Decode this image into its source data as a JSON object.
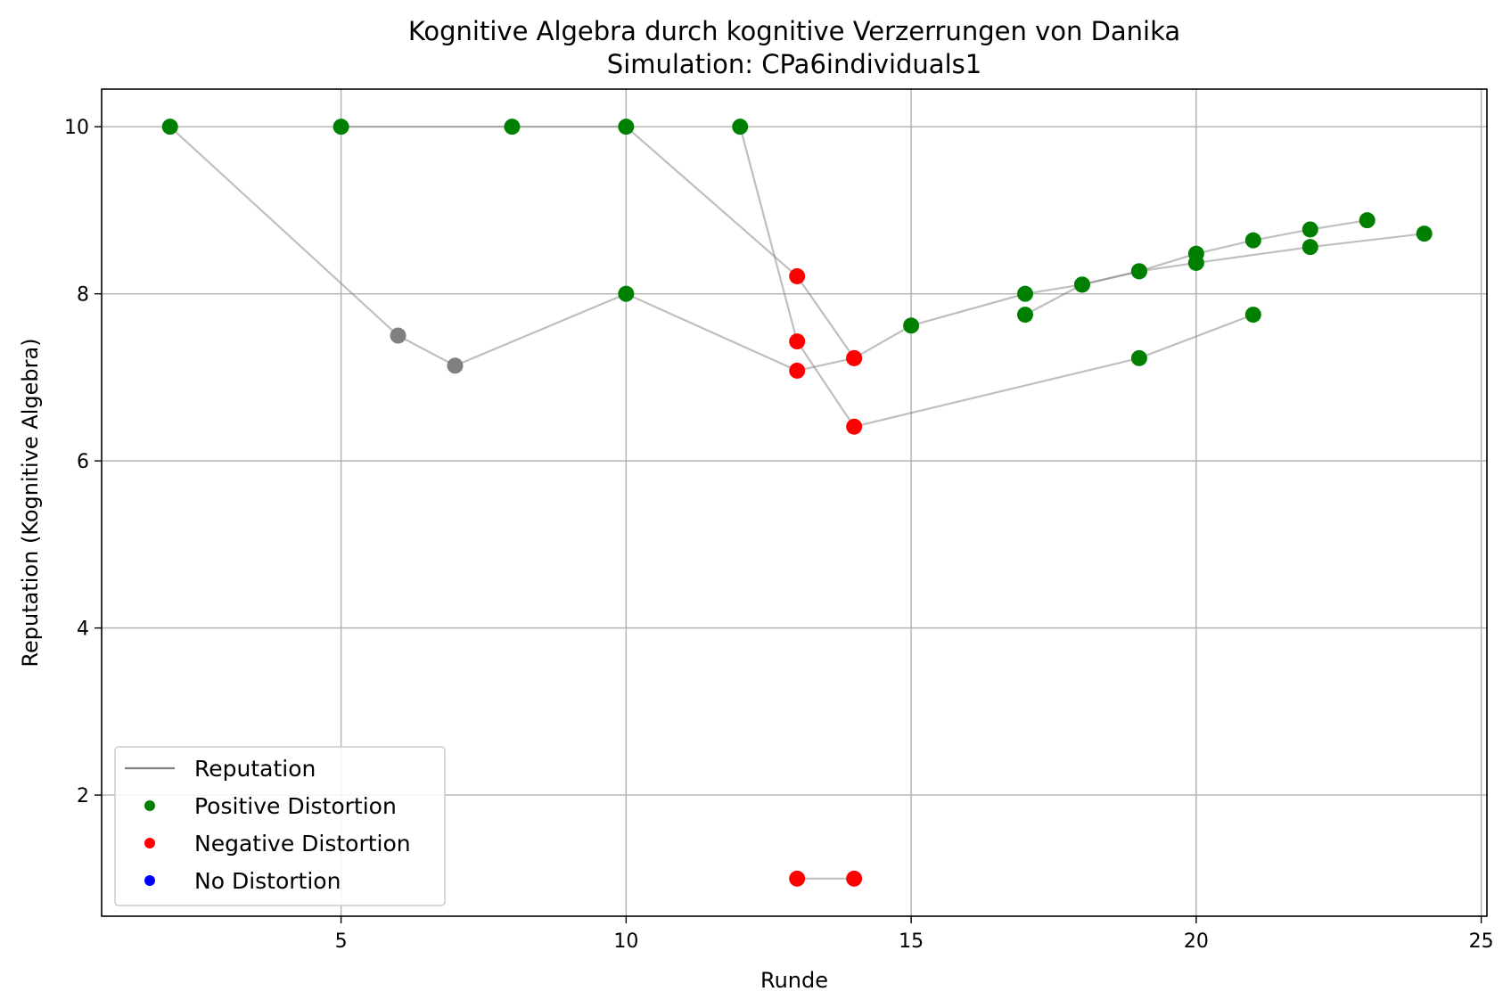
{
  "chart_data": {
    "type": "scatter",
    "title": "Kognitive Algebra durch kognitive Verzerrungen von Danika",
    "subtitle": "Simulation: CPa6individuals1",
    "xlabel": "Runde",
    "ylabel": "Reputation (Kognitive Algebra)",
    "xlim": [
      0.8,
      25.1
    ],
    "ylim": [
      0.55,
      10.45
    ],
    "xticks": [
      5,
      10,
      15,
      20,
      25
    ],
    "yticks": [
      2,
      4,
      6,
      8,
      10
    ],
    "grid": true,
    "legend_position": "lower-left",
    "legend": [
      {
        "label": "Reputation",
        "kind": "line",
        "color": "#808080"
      },
      {
        "label": "Positive Distortion",
        "kind": "marker",
        "color": "#008000"
      },
      {
        "label": "Negative Distortion",
        "kind": "marker",
        "color": "#ff0000"
      },
      {
        "label": "No Distortion",
        "kind": "marker",
        "color": "#0000ff"
      }
    ],
    "colors": {
      "positive": "#008000",
      "negative": "#ff0000",
      "neutral": "#808080",
      "line": "#808080",
      "grid": "#b0b0b0"
    },
    "trajectories": [
      [
        {
          "x": 2,
          "y": 10.0,
          "d": "positive"
        },
        {
          "x": 6,
          "y": 7.5,
          "d": "neutral"
        },
        {
          "x": 7,
          "y": 7.14,
          "d": "neutral"
        },
        {
          "x": 10,
          "y": 8.0,
          "d": "positive"
        },
        {
          "x": 13,
          "y": 7.08,
          "d": "negative"
        },
        {
          "x": 14,
          "y": 7.23,
          "d": "negative"
        },
        {
          "x": 15,
          "y": 7.62,
          "d": "positive"
        },
        {
          "x": 17,
          "y": 8.0,
          "d": "positive"
        },
        {
          "x": 18,
          "y": 8.11,
          "d": "positive"
        },
        {
          "x": 19,
          "y": 8.27,
          "d": "positive"
        },
        {
          "x": 20,
          "y": 8.48,
          "d": "positive"
        },
        {
          "x": 21,
          "y": 8.64,
          "d": "positive"
        },
        {
          "x": 22,
          "y": 8.77,
          "d": "positive"
        },
        {
          "x": 23,
          "y": 8.88,
          "d": "positive"
        }
      ],
      [
        {
          "x": 5,
          "y": 10.0,
          "d": "positive"
        },
        {
          "x": 8,
          "y": 10.0,
          "d": "positive"
        },
        {
          "x": 10,
          "y": 10.0,
          "d": "positive"
        },
        {
          "x": 13,
          "y": 8.21,
          "d": "negative"
        },
        {
          "x": 14,
          "y": 7.23,
          "d": "negative"
        }
      ],
      [
        {
          "x": 12,
          "y": 10.0,
          "d": "positive"
        },
        {
          "x": 13,
          "y": 7.43,
          "d": "negative"
        },
        {
          "x": 14,
          "y": 6.41,
          "d": "negative"
        },
        {
          "x": 19,
          "y": 7.23,
          "d": "positive"
        },
        {
          "x": 21,
          "y": 7.75,
          "d": "positive"
        }
      ],
      [
        {
          "x": 17,
          "y": 7.75,
          "d": "positive"
        },
        {
          "x": 18,
          "y": 8.11,
          "d": "positive"
        },
        {
          "x": 19,
          "y": 8.27,
          "d": "positive"
        },
        {
          "x": 20,
          "y": 8.37,
          "d": "positive"
        },
        {
          "x": 22,
          "y": 8.56,
          "d": "positive"
        },
        {
          "x": 24,
          "y": 8.72,
          "d": "positive"
        }
      ],
      [
        {
          "x": 13,
          "y": 1.0,
          "d": "negative"
        },
        {
          "x": 14,
          "y": 1.0,
          "d": "negative"
        }
      ]
    ]
  }
}
